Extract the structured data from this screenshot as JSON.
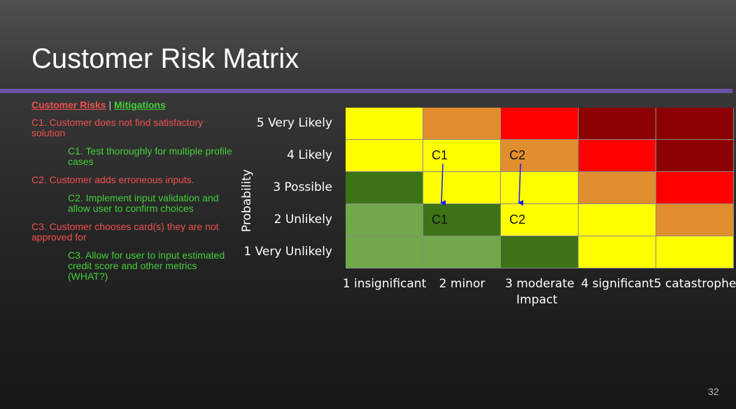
{
  "slide": {
    "title": "Customer Risk Matrix",
    "page_number": "32"
  },
  "legend": {
    "risks_label": "Customer Risks",
    "separator": "|",
    "mitigations_label": "Mitigations"
  },
  "items": [
    {
      "type": "risk",
      "text": "C1. Customer does not find satisfactory solution"
    },
    {
      "type": "mitigation",
      "text": "C1. Test thoroughly for multiple profile cases"
    },
    {
      "type": "risk",
      "text": "C2. Customer adds erroneous inputs."
    },
    {
      "type": "mitigation",
      "text": "C2. Implement input validation and allow user to confirm choices"
    },
    {
      "type": "risk",
      "text": "C3. Customer chooses card(s) they are not approved for"
    },
    {
      "type": "mitigation",
      "text": "C3. Allow for user to input estimated credit score and other metrics (WHAT?)"
    }
  ],
  "matrix": {
    "y_axis_label": "Probability",
    "x_axis_label": "Impact",
    "rows": [
      "5 Very Likely",
      "4 Likely",
      "3 Possible",
      "2 Unlikely",
      "1 Very Unlikely"
    ],
    "columns": [
      "1 insignificant",
      "2 minor",
      "3 moderate",
      "4 significant",
      "5 catastrophe"
    ],
    "cell_colors": [
      [
        "#ffff00",
        "#e08e2e",
        "#ff0000",
        "#8b0000",
        "#8b0000"
      ],
      [
        "#ffff00",
        "#ffff00",
        "#e08e2e",
        "#ff0000",
        "#8b0000"
      ],
      [
        "#3b7315",
        "#ffff00",
        "#ffff00",
        "#e08e2e",
        "#ff0000"
      ],
      [
        "#70a84a",
        "#3b7315",
        "#ffff00",
        "#ffff00",
        "#e08e2e"
      ],
      [
        "#70a84a",
        "#70a84a",
        "#3b7315",
        "#ffff00",
        "#ffff00"
      ]
    ],
    "markers": [
      {
        "label": "C1",
        "from": {
          "row": "4 Likely",
          "column": "2 minor"
        },
        "to": {
          "row": "2 Unlikely",
          "column": "2 minor"
        }
      },
      {
        "label": "C2",
        "from": {
          "row": "4 Likely",
          "column": "3 moderate"
        },
        "to": {
          "row": "2 Unlikely",
          "column": "3 moderate"
        }
      }
    ],
    "arrow_color": "#1a1aff"
  }
}
